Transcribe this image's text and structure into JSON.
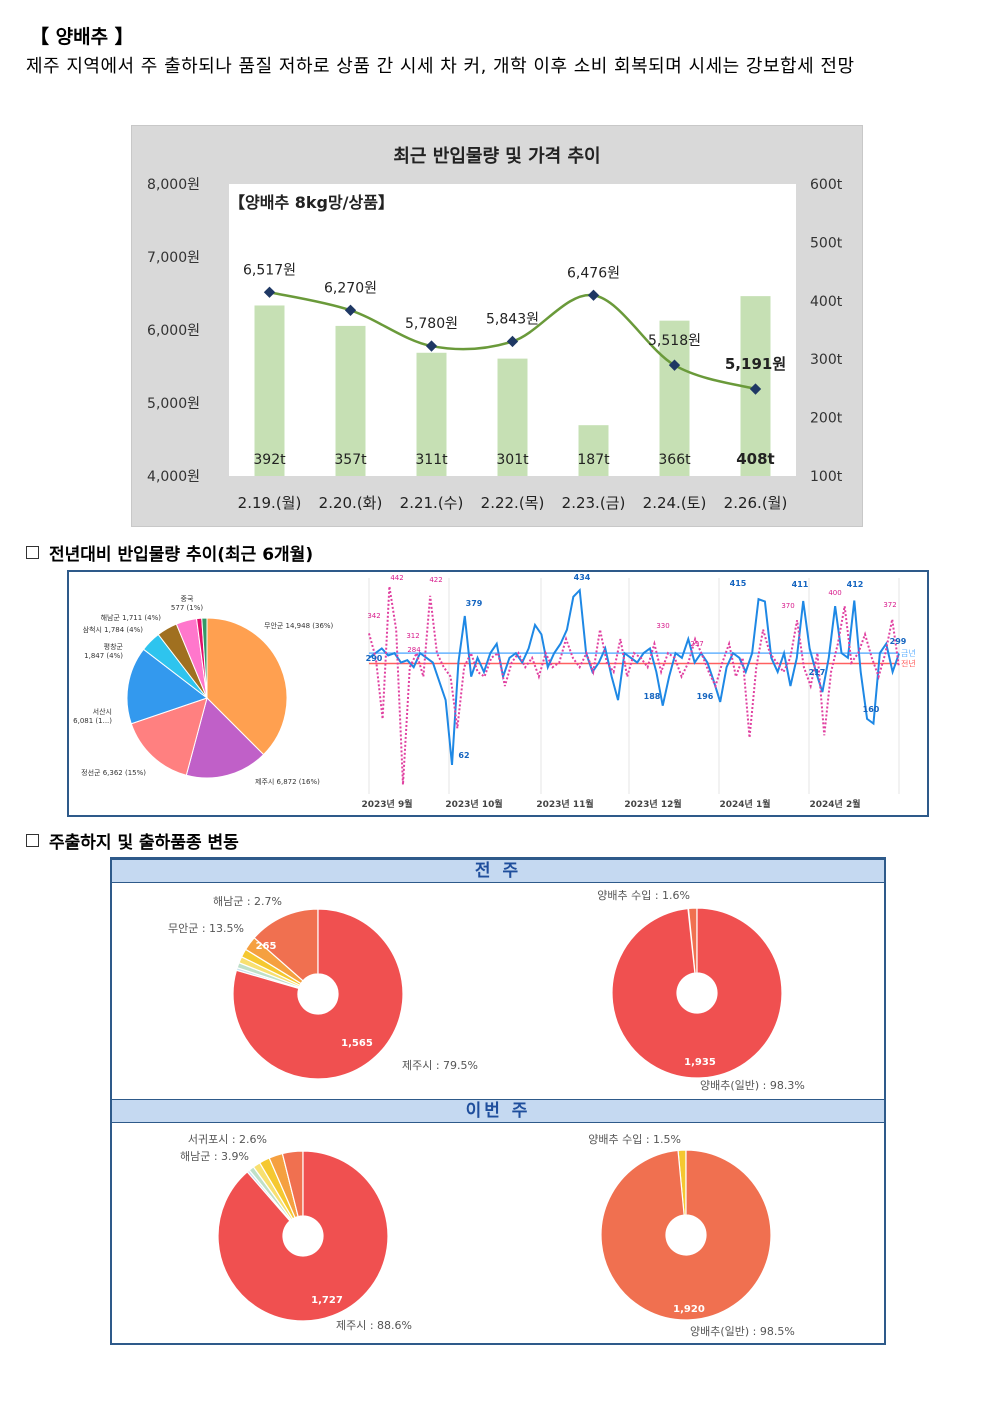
{
  "heading": "【 양배추 】",
  "summary": "제주 지역에서 주 출하되나 품질 저하로 상품 간 시세 차 커, 개학 이후 소비 회복되며 시세는 강보합세 전망",
  "chart_data": [
    {
      "type": "bar+line",
      "title": "최근 반입물량 및 가격 추이",
      "annotation": "【양배추 8kg망/상품】",
      "categories": [
        "2.19.(월)",
        "2.20.(화)",
        "2.21.(수)",
        "2.22.(목)",
        "2.23.(금)",
        "2.24.(토)",
        "2.26.(월)"
      ],
      "bar_labels": [
        "392t",
        "357t",
        "311t",
        "301t",
        "187t",
        "366t",
        "408t"
      ],
      "bars": [
        392,
        357,
        311,
        301,
        187,
        366,
        408
      ],
      "line_labels": [
        "6,517원",
        "6,270원",
        "5,780원",
        "5,843원",
        "6,476원",
        "5,518원",
        "5,191원"
      ],
      "line": [
        6517,
        6270,
        5780,
        5843,
        6476,
        5518,
        5191
      ],
      "y_left_ticks": [
        "4,000원",
        "5,000원",
        "6,000원",
        "7,000원",
        "8,000원"
      ],
      "y_left_range": [
        4000,
        8000
      ],
      "y_right_ticks": [
        "100t",
        "200t",
        "300t",
        "400t",
        "500t",
        "600t"
      ],
      "y_right_range": [
        100,
        600
      ],
      "bar_color": "#c6e0b4",
      "line_color": "#6a9a3a",
      "marker_color": "#1f3864",
      "grid": false
    },
    {
      "type": "pie",
      "slices": [
        {
          "label": "무안군 14,948 (36%)",
          "value": 36,
          "color": "#ffa050"
        },
        {
          "label": "제주시 6,872 (16%)",
          "value": 16,
          "color": "#c060c8"
        },
        {
          "label": "정선군 6,362 (15%)",
          "value": 15,
          "color": "#ff8080"
        },
        {
          "label": "서산시 6,081 (1...)",
          "value": 15,
          "color": "#3399ee"
        },
        {
          "label": "평창군 1,847 (4%)",
          "value": 4,
          "color": "#2ec4ee"
        },
        {
          "label": "삼척시 1,784 (4%)",
          "value": 4,
          "color": "#a07020"
        },
        {
          "label": "해남군 1,711 (4%)",
          "value": 4,
          "color": "#ff77cc"
        },
        {
          "label": "중국 577 (1%)",
          "value": 1,
          "color": "#e0106a"
        },
        {
          "label": "",
          "value": 1,
          "color": "#339966"
        }
      ]
    },
    {
      "type": "line",
      "x_ticks": [
        "2023년 9월",
        "2023년 10월",
        "2023년 11월",
        "2023년 12월",
        "2024년 1월",
        "2024년 2월"
      ],
      "series": [
        {
          "name": "금년",
          "color": "#1e88e5",
          "values": [
            290,
            300,
            310,
            295,
            300,
            280,
            285,
            270,
            300,
            290,
            280,
            240,
            200,
            62,
            280,
            379,
            250,
            290,
            260,
            300,
            320,
            250,
            290,
            300,
            280,
            310,
            360,
            340,
            270,
            300,
            320,
            350,
            420,
            434,
            300,
            260,
            280,
            310,
            250,
            200,
            300,
            290,
            280,
            300,
            310,
            260,
            188,
            250,
            300,
            290,
            330,
            280,
            300,
            280,
            240,
            196,
            270,
            300,
            290,
            260,
            300,
            415,
            410,
            290,
            260,
            300,
            230,
            290,
            411,
            310,
            260,
            217,
            290,
            400,
            300,
            290,
            412,
            260,
            160,
            150,
            300,
            320,
            260,
            299
          ]
        },
        {
          "name": "전년",
          "color": "#e040a0",
          "values": [
            342,
            290,
            160,
            442,
            350,
            20,
            270,
            300,
            250,
            422,
            300,
            270,
            250,
            140,
            270,
            300,
            260,
            250,
            290,
            300,
            230,
            280,
            300,
            270,
            290,
            250,
            300,
            270,
            280,
            330,
            290,
            270,
            300,
            260,
            350,
            280,
            260,
            330,
            250,
            300,
            290,
            270,
            320,
            260,
            300,
            290,
            250,
            280,
            330,
            297,
            260,
            230,
            280,
            320,
            250,
            290,
            120,
            270,
            350,
            300,
            280,
            260,
            290,
            370,
            270,
            230,
            300,
            125,
            260,
            320,
            400,
            280,
            300,
            340,
            290,
            250,
            300,
            372,
            270
          ]
        }
      ],
      "peak_labels_blue": [
        "379",
        "434",
        "415",
        "411",
        "412",
        "62",
        "188",
        "196",
        "217",
        "160",
        "299",
        "290"
      ],
      "peak_labels_pink": [
        "342",
        "442",
        "422",
        "330",
        "297",
        "370",
        "400",
        "372",
        "312",
        "284"
      ],
      "ref_lines": [
        {
          "label": "금년",
          "value": 300,
          "color": "#66b3ff"
        },
        {
          "label": "전년",
          "value": 278,
          "color": "#ff6060"
        }
      ]
    },
    {
      "type": "pie",
      "group": "전 주",
      "slices": [
        {
          "label": "제주시 : 79.5%",
          "value": 79.5,
          "inside": "1,565",
          "color": "#f05050"
        },
        {
          "label": "무안군 : 13.5%",
          "value": 13.5,
          "inside": "265",
          "color": "#f07050"
        },
        {
          "label": "해남군 : 2.7%",
          "value": 2.7,
          "color": "#f5a040"
        },
        {
          "label": "",
          "value": 1.6,
          "color": "#f5c830"
        },
        {
          "label": "",
          "value": 1.2,
          "color": "#f8e070"
        },
        {
          "label": "",
          "value": 1.0,
          "color": "#bfe0c8"
        },
        {
          "label": "",
          "value": 0.5,
          "color": "#c8e0f0"
        }
      ]
    },
    {
      "type": "pie",
      "group": "전 주",
      "slices": [
        {
          "label": "양배추(일반) : 98.3%",
          "value": 98.3,
          "inside": "1,935",
          "color": "#f05050"
        },
        {
          "label": "양배추 수입 : 1.6%",
          "value": 1.6,
          "color": "#f07050"
        },
        {
          "label": "",
          "value": 0.1,
          "color": "#f5c830"
        }
      ]
    },
    {
      "type": "pie",
      "group": "이번 주",
      "slices": [
        {
          "label": "제주시 : 88.6%",
          "value": 88.6,
          "inside": "1,727",
          "color": "#f05050"
        },
        {
          "label": "해남군 : 3.9%",
          "value": 3.9,
          "color": "#f07050"
        },
        {
          "label": "서귀포시 : 2.6%",
          "value": 2.6,
          "color": "#f5a040"
        },
        {
          "label": "",
          "value": 2.0,
          "color": "#f5c830"
        },
        {
          "label": "",
          "value": 1.4,
          "color": "#f8e070"
        },
        {
          "label": "",
          "value": 1.0,
          "color": "#bfe0c8"
        },
        {
          "label": "",
          "value": 0.5,
          "color": "#c8e0f0"
        }
      ]
    },
    {
      "type": "pie",
      "group": "이번 주",
      "slices": [
        {
          "label": "양배추(일반) : 98.5%",
          "value": 98.5,
          "inside": "1,920",
          "color": "#f07050"
        },
        {
          "label": "양배추 수입 : 1.5%",
          "value": 1.5,
          "color": "#f5c830"
        }
      ]
    }
  ],
  "section2_title": "전년대비 반입물량 추이(최근 6개월)",
  "section3_title": "주출하지 및 출하품종 변동",
  "panel3": {
    "band_prev": "전 주",
    "band_this": "이번 주"
  }
}
